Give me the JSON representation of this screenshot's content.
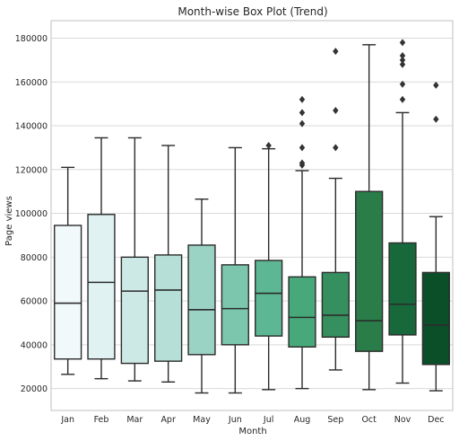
{
  "chart_data": {
    "type": "box",
    "title": "Month-wise Box Plot (Trend)",
    "xlabel": "Month",
    "ylabel": "Page views",
    "ylim": [
      10000,
      188000
    ],
    "yticks": [
      20000,
      40000,
      60000,
      80000,
      100000,
      120000,
      140000,
      160000,
      180000
    ],
    "grid": true,
    "categories": [
      "Jan",
      "Feb",
      "Mar",
      "Apr",
      "May",
      "Jun",
      "Jul",
      "Aug",
      "Sep",
      "Oct",
      "Nov",
      "Dec"
    ],
    "colors": [
      "#f1f9fb",
      "#e0f2f2",
      "#cde9e5",
      "#b6e0d7",
      "#9ad2c3",
      "#7bc6ad",
      "#5db795",
      "#47a97a",
      "#368f5e",
      "#2a7d49",
      "#17693b",
      "#0b4f29"
    ],
    "boxes": [
      {
        "whisker_low": 26500,
        "q1": 33500,
        "median": 59000,
        "q3": 94500,
        "whisker_high": 121000,
        "outliers": []
      },
      {
        "whisker_low": 24500,
        "q1": 33500,
        "median": 68500,
        "q3": 99500,
        "whisker_high": 134500,
        "outliers": []
      },
      {
        "whisker_low": 23500,
        "q1": 31500,
        "median": 64500,
        "q3": 80000,
        "whisker_high": 134500,
        "outliers": []
      },
      {
        "whisker_low": 23000,
        "q1": 32500,
        "median": 65000,
        "q3": 81000,
        "whisker_high": 131000,
        "outliers": []
      },
      {
        "whisker_low": 18000,
        "q1": 35500,
        "median": 56000,
        "q3": 85500,
        "whisker_high": 106500,
        "outliers": []
      },
      {
        "whisker_low": 18000,
        "q1": 40000,
        "median": 56500,
        "q3": 76500,
        "whisker_high": 130000,
        "outliers": []
      },
      {
        "whisker_low": 19500,
        "q1": 44000,
        "median": 63500,
        "q3": 78500,
        "whisker_high": 129500,
        "outliers": [
          131000
        ]
      },
      {
        "whisker_low": 20000,
        "q1": 39000,
        "median": 52500,
        "q3": 71000,
        "whisker_high": 119500,
        "outliers": [
          122000,
          123000,
          130000,
          141000,
          146000,
          152000
        ]
      },
      {
        "whisker_low": 28500,
        "q1": 43500,
        "median": 53500,
        "q3": 73000,
        "whisker_high": 116000,
        "outliers": [
          130000,
          147000,
          174000
        ]
      },
      {
        "whisker_low": 19500,
        "q1": 37000,
        "median": 51000,
        "q3": 110000,
        "whisker_high": 177000,
        "outliers": []
      },
      {
        "whisker_low": 22500,
        "q1": 44500,
        "median": 58500,
        "q3": 86500,
        "whisker_high": 146000,
        "outliers": [
          152000,
          159000,
          168000,
          170000,
          172000,
          178000
        ]
      },
      {
        "whisker_low": 19000,
        "q1": 31000,
        "median": 49000,
        "q3": 73000,
        "whisker_high": 98500,
        "outliers": [
          143000,
          158500
        ]
      }
    ]
  }
}
